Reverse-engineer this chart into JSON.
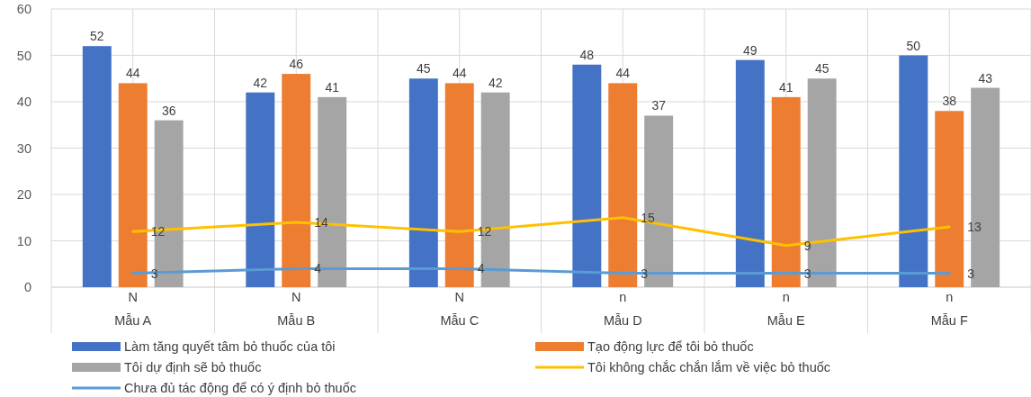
{
  "chart_data": {
    "type": "bar",
    "categories": [
      "N\nMẫu A",
      "N\nMẫu B",
      "N\nMẫu C",
      "n\nMẫu D",
      "n\nMẫu E",
      "n\nMẫu F"
    ],
    "series": [
      {
        "name": "Làm tăng quyết tâm bỏ thuốc của tôi",
        "color": "#4472c4",
        "values": [
          52,
          42,
          45,
          48,
          49,
          50
        ]
      },
      {
        "name": "Tạo động lực để tôi bỏ thuốc",
        "color": "#ed7d31",
        "values": [
          44,
          46,
          44,
          44,
          41,
          38
        ]
      },
      {
        "name": "Tôi dự định sẽ bỏ thuốc",
        "color": "#a5a5a5",
        "values": [
          36,
          41,
          42,
          37,
          45,
          43
        ]
      },
      {
        "name": "Tôi không chắc chắn lắm về việc bỏ thuốc",
        "color": "#ffc000",
        "type": "line",
        "values": [
          12,
          14,
          12,
          15,
          9,
          13
        ]
      },
      {
        "name": "Chưa đủ tác động để có ý định bỏ thuốc",
        "color": "#5b9bd5",
        "type": "line",
        "values": [
          3,
          4,
          4,
          3,
          3,
          3
        ]
      }
    ],
    "ylim": [
      0,
      60
    ],
    "yticks": [
      0,
      10,
      20,
      30,
      40,
      50,
      60
    ],
    "grid": true,
    "legend": "bottom",
    "data_labels": true,
    "marker": "none",
    "line_style": "solid"
  }
}
